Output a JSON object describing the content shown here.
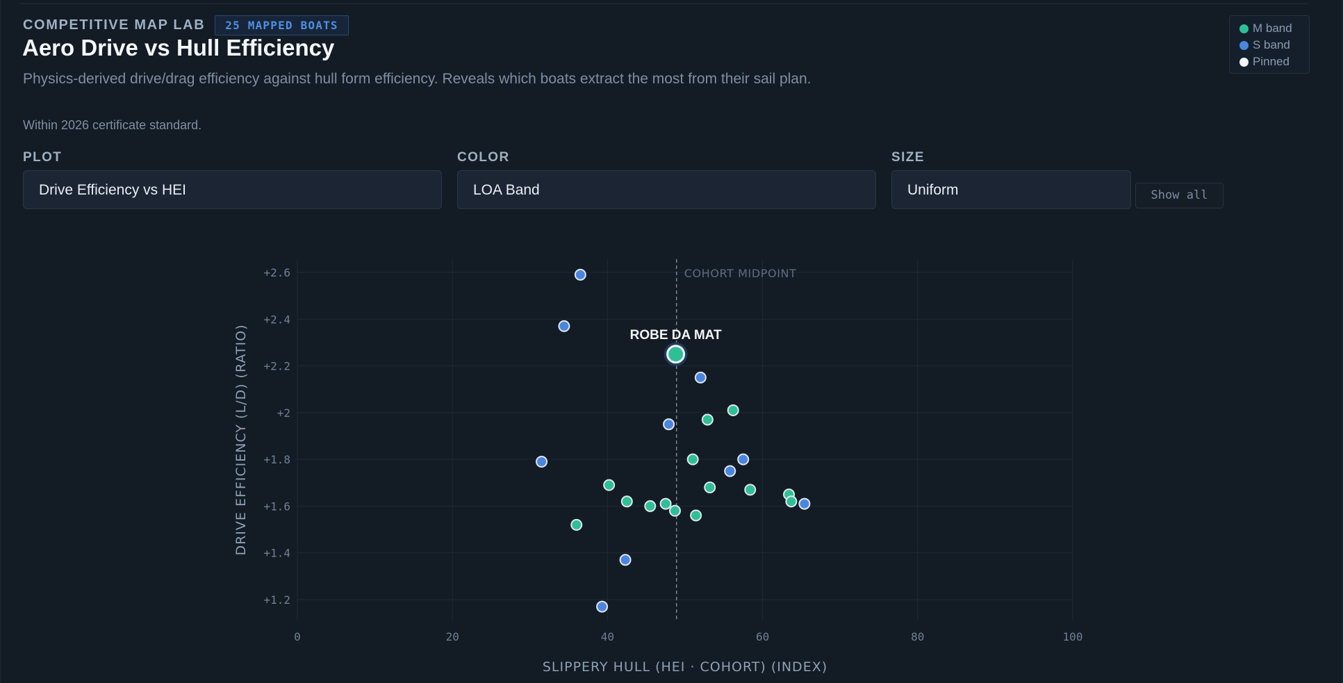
{
  "header": {
    "eyebrow": "COMPETITIVE MAP LAB",
    "badge": "25 MAPPED BOATS",
    "title": "Aero Drive vs Hull Efficiency",
    "subtitle": "Physics-derived drive/drag efficiency against hull form efficiency. Reveals which boats extract the most from their sail plan.",
    "note": "Within 2026 certificate standard."
  },
  "legend": [
    {
      "label": "M band",
      "color": "#2fbf96"
    },
    {
      "label": "S band",
      "color": "#4a86de"
    },
    {
      "label": "Pinned",
      "color": "#f2f4f7"
    }
  ],
  "controls": {
    "plot": {
      "label": "PLOT",
      "value": "Drive Efficiency vs HEI"
    },
    "color": {
      "label": "COLOR",
      "value": "LOA Band"
    },
    "size": {
      "label": "SIZE",
      "value": "Uniform"
    },
    "show_all": "Show all"
  },
  "chart_data": {
    "type": "scatter",
    "xlabel": "SLIPPERY HULL (HEI · COHORT) (INDEX)",
    "ylabel": "DRIVE EFFICIENCY (L/D) (RATIO)",
    "xlim": [
      0,
      100
    ],
    "ylim": [
      1.1,
      2.65
    ],
    "xticks": [
      0,
      20,
      40,
      60,
      80,
      100
    ],
    "yticks": [
      1.2,
      1.4,
      1.6,
      1.8,
      2.0,
      2.2,
      2.4,
      2.6
    ],
    "ytick_labels": [
      "+1.2",
      "+1.4",
      "+1.6",
      "+1.8",
      "+2",
      "+2.2",
      "+2.4",
      "+2.6"
    ],
    "grid": true,
    "reference_line": {
      "x": 48.9,
      "label": "COHORT MIDPOINT"
    },
    "colors": {
      "M band": "#2fbf96",
      "S band": "#4a86de"
    },
    "series": [
      {
        "name": "M band",
        "points": [
          {
            "x": 56.2,
            "y": 2.01
          },
          {
            "x": 52.9,
            "y": 1.97
          },
          {
            "x": 51.0,
            "y": 1.8
          },
          {
            "x": 40.2,
            "y": 1.69
          },
          {
            "x": 53.2,
            "y": 1.68
          },
          {
            "x": 58.4,
            "y": 1.67
          },
          {
            "x": 63.4,
            "y": 1.65
          },
          {
            "x": 63.7,
            "y": 1.62
          },
          {
            "x": 42.5,
            "y": 1.62
          },
          {
            "x": 45.5,
            "y": 1.6
          },
          {
            "x": 47.5,
            "y": 1.61
          },
          {
            "x": 48.7,
            "y": 1.58
          },
          {
            "x": 51.4,
            "y": 1.56
          },
          {
            "x": 36.0,
            "y": 1.52
          }
        ]
      },
      {
        "name": "S band",
        "points": [
          {
            "x": 36.5,
            "y": 2.59
          },
          {
            "x": 34.4,
            "y": 2.37
          },
          {
            "x": 52.0,
            "y": 2.15
          },
          {
            "x": 47.9,
            "y": 1.95
          },
          {
            "x": 31.5,
            "y": 1.79
          },
          {
            "x": 57.5,
            "y": 1.8
          },
          {
            "x": 55.8,
            "y": 1.75
          },
          {
            "x": 65.4,
            "y": 1.61
          },
          {
            "x": 42.3,
            "y": 1.37
          },
          {
            "x": 39.3,
            "y": 1.17
          }
        ]
      }
    ],
    "pinned": {
      "name": "ROBE DA MAT",
      "x": 48.8,
      "y": 2.25,
      "band": "M band"
    }
  }
}
